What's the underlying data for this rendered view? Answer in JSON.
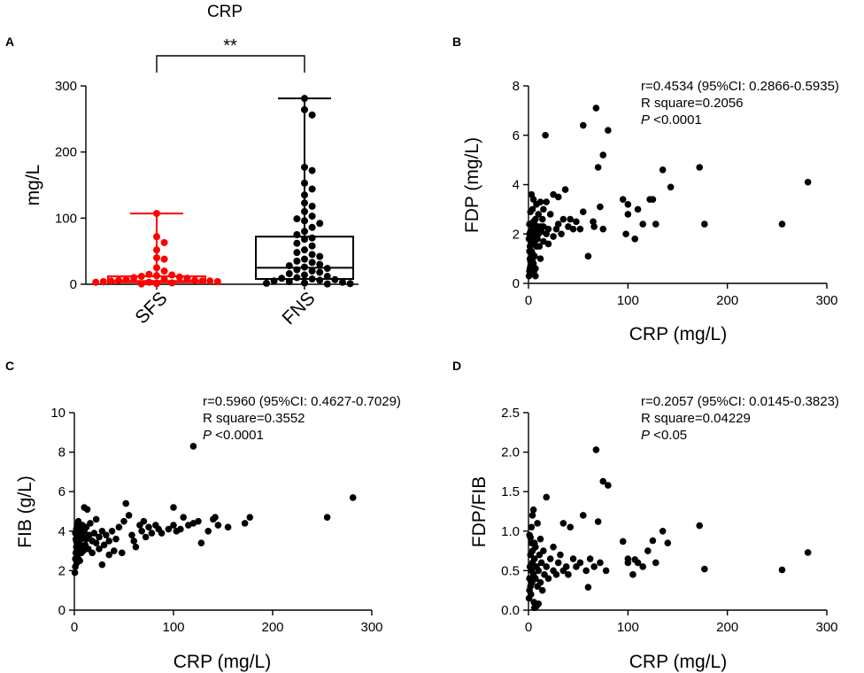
{
  "figure": {
    "width": 976,
    "height": 760
  },
  "chart_data": [
    {
      "panel": "A",
      "type": "box",
      "title": "CRP",
      "ylabel": "mg/L",
      "ylim": [
        0,
        300
      ],
      "yticks": [
        0,
        100,
        200,
        300
      ],
      "categories": [
        "SFS",
        "FNS"
      ],
      "significance": "**",
      "groups": [
        {
          "name": "SFS",
          "color": "#ff0000",
          "box": {
            "min": 0.5,
            "q1": 3,
            "median": 5,
            "q3": 12,
            "max": 107
          },
          "points": [
            107,
            72,
            63,
            52,
            40,
            38,
            25,
            20,
            15,
            14,
            13,
            12,
            11,
            10,
            9,
            8,
            7,
            6,
            6,
            5,
            5,
            5,
            4,
            4,
            3,
            3,
            2,
            2,
            1.5,
            1,
            1,
            0.5
          ]
        },
        {
          "name": "FNS",
          "color": "#000000",
          "box": {
            "min": 0.5,
            "q1": 8,
            "median": 25,
            "q3": 72,
            "max": 281
          },
          "points": [
            281,
            264,
            256,
            177,
            172,
            153,
            144,
            135,
            123,
            118,
            110,
            103,
            99,
            96,
            92,
            86,
            80,
            75,
            70,
            68,
            62,
            58,
            52,
            48,
            45,
            42,
            38,
            35,
            33,
            30,
            28,
            26,
            24,
            22,
            20,
            18,
            16,
            14,
            12,
            10,
            9,
            8,
            7,
            6,
            5,
            4,
            3,
            2,
            1.5,
            1,
            0.5
          ]
        }
      ]
    },
    {
      "panel": "B",
      "type": "scatter",
      "xlabel": "CRP (mg/L)",
      "ylabel": "FDP (mg/L)",
      "xlim": [
        0,
        300
      ],
      "ylim": [
        0,
        8
      ],
      "xticks": [
        0,
        100,
        200,
        300
      ],
      "yticks": [
        0,
        2,
        4,
        6,
        8
      ],
      "stats": [
        "r=0.4534 (95%CI: 0.2866-0.5935)",
        "R square=0.2056"
      ],
      "p_prefix": "P",
      "p_value": " <0.0001",
      "points": [
        [
          0.5,
          0.3
        ],
        [
          1,
          0.5
        ],
        [
          1.5,
          0.6
        ],
        [
          2,
          0.7
        ],
        [
          2,
          0.9
        ],
        [
          2.5,
          0.8
        ],
        [
          3,
          1.0
        ],
        [
          3,
          0.6
        ],
        [
          4,
          0.9
        ],
        [
          4,
          1.2
        ],
        [
          5,
          0.4
        ],
        [
          5,
          0.8
        ],
        [
          5.5,
          0.5
        ],
        [
          6,
          1.1
        ],
        [
          7,
          0.3
        ],
        [
          7,
          0.6
        ],
        [
          0.5,
          1.8
        ],
        [
          1,
          2.0
        ],
        [
          1,
          2.4
        ],
        [
          1.5,
          1.5
        ],
        [
          2,
          2.1
        ],
        [
          2.5,
          1.6
        ],
        [
          3,
          1.3
        ],
        [
          3.5,
          1.9
        ],
        [
          4,
          2.2
        ],
        [
          4,
          1.7
        ],
        [
          5,
          2.5
        ],
        [
          5.5,
          2.0
        ],
        [
          6,
          1.6
        ],
        [
          6,
          2.4
        ],
        [
          7,
          1.9
        ],
        [
          7,
          2.6
        ],
        [
          8,
          1.5
        ],
        [
          8,
          2.2
        ],
        [
          9,
          1.8
        ],
        [
          10,
          2.0
        ],
        [
          10,
          2.8
        ],
        [
          11,
          1.5
        ],
        [
          12,
          2.3
        ],
        [
          12,
          1.0
        ],
        [
          13,
          2.1
        ],
        [
          14,
          2.6
        ],
        [
          15,
          1.7
        ],
        [
          15,
          2.3
        ],
        [
          17,
          6.0
        ],
        [
          18,
          2.0
        ],
        [
          20,
          1.6
        ],
        [
          20,
          2.2
        ],
        [
          22,
          2.8
        ],
        [
          25,
          1.9
        ],
        [
          25,
          3.6
        ],
        [
          28,
          2.2
        ],
        [
          30,
          2.4
        ],
        [
          30,
          3.5
        ],
        [
          33,
          2.0
        ],
        [
          35,
          2.6
        ],
        [
          37,
          3.8
        ],
        [
          40,
          2.3
        ],
        [
          42,
          2.6
        ],
        [
          45,
          2.2
        ],
        [
          48,
          2.5
        ],
        [
          52,
          2.2
        ],
        [
          55,
          2.9
        ],
        [
          55,
          6.4
        ],
        [
          60,
          1.1
        ],
        [
          65,
          2.5
        ],
        [
          66,
          2.3
        ],
        [
          68,
          7.1
        ],
        [
          70,
          4.7
        ],
        [
          72,
          3.1
        ],
        [
          75,
          2.2
        ],
        [
          75,
          5.2
        ],
        [
          80,
          6.2
        ],
        [
          95,
          3.4
        ],
        [
          98,
          2.0
        ],
        [
          100,
          3.2
        ],
        [
          100,
          2.8
        ],
        [
          107,
          1.8
        ],
        [
          110,
          3.0
        ],
        [
          115,
          2.4
        ],
        [
          122,
          3.4
        ],
        [
          125,
          3.4
        ],
        [
          128,
          2.4
        ],
        [
          135,
          4.6
        ],
        [
          143,
          3.9
        ],
        [
          172,
          4.7
        ],
        [
          177,
          2.4
        ],
        [
          255,
          2.4
        ],
        [
          281,
          4.1
        ],
        [
          3,
          3.6
        ],
        [
          5,
          3.4
        ],
        [
          8,
          3.2
        ],
        [
          12,
          3.3
        ],
        [
          15,
          3.0
        ],
        [
          18,
          3.3
        ],
        [
          2,
          2.9
        ],
        [
          1,
          1.3
        ],
        [
          1.5,
          1.0
        ],
        [
          4,
          3.0
        ],
        [
          9,
          2.3
        ]
      ]
    },
    {
      "panel": "C",
      "type": "scatter",
      "xlabel": "CRP (mg/L)",
      "ylabel": "FIB (g/L)",
      "xlim": [
        0,
        300
      ],
      "ylim": [
        0,
        10
      ],
      "xticks": [
        0,
        100,
        200,
        300
      ],
      "yticks": [
        0,
        2,
        4,
        6,
        8,
        10
      ],
      "stats": [
        "r=0.5960 (95%CI: 0.4627-0.7029)",
        "R square=0.3552"
      ],
      "p_prefix": "P",
      "p_value": " <0.0001",
      "points": [
        [
          0.5,
          1.9
        ],
        [
          1,
          2.2
        ],
        [
          1,
          2.6
        ],
        [
          1.5,
          2.9
        ],
        [
          2,
          3.2
        ],
        [
          2,
          3.5
        ],
        [
          2.5,
          2.4
        ],
        [
          3,
          2.8
        ],
        [
          3,
          3.8
        ],
        [
          3.5,
          3.1
        ],
        [
          4,
          2.6
        ],
        [
          4,
          3.4
        ],
        [
          5,
          3.0
        ],
        [
          5,
          3.9
        ],
        [
          5.5,
          2.5
        ],
        [
          6,
          3.3
        ],
        [
          6,
          4.1
        ],
        [
          7,
          2.9
        ],
        [
          7,
          3.6
        ],
        [
          8,
          3.2
        ],
        [
          8,
          4.3
        ],
        [
          9,
          3.0
        ],
        [
          9,
          3.7
        ],
        [
          10,
          4.0
        ],
        [
          10,
          5.2
        ],
        [
          11,
          3.3
        ],
        [
          12,
          3.6
        ],
        [
          12,
          4.2
        ],
        [
          13,
          5.1
        ],
        [
          14,
          3.1
        ],
        [
          15,
          3.8
        ],
        [
          16,
          4.4
        ],
        [
          18,
          3.5
        ],
        [
          18,
          2.9
        ],
        [
          20,
          3.9
        ],
        [
          22,
          3.4
        ],
        [
          22,
          4.6
        ],
        [
          25,
          3.1
        ],
        [
          25,
          3.7
        ],
        [
          28,
          4.0
        ],
        [
          28,
          2.3
        ],
        [
          30,
          3.3
        ],
        [
          32,
          3.8
        ],
        [
          35,
          3.5
        ],
        [
          35,
          2.8
        ],
        [
          38,
          4.0
        ],
        [
          40,
          3.0
        ],
        [
          42,
          3.6
        ],
        [
          45,
          4.2
        ],
        [
          48,
          2.9
        ],
        [
          50,
          4.5
        ],
        [
          52,
          5.4
        ],
        [
          55,
          4.8
        ],
        [
          58,
          3.8
        ],
        [
          60,
          3.5
        ],
        [
          62,
          3.2
        ],
        [
          66,
          4.3
        ],
        [
          68,
          4.0
        ],
        [
          70,
          4.5
        ],
        [
          72,
          3.7
        ],
        [
          75,
          4.2
        ],
        [
          78,
          3.9
        ],
        [
          82,
          4.3
        ],
        [
          85,
          4.1
        ],
        [
          88,
          3.9
        ],
        [
          95,
          4.1
        ],
        [
          100,
          4.3
        ],
        [
          100,
          5.2
        ],
        [
          103,
          4.0
        ],
        [
          107,
          4.1
        ],
        [
          110,
          4.7
        ],
        [
          115,
          4.3
        ],
        [
          120,
          4.4
        ],
        [
          120,
          8.3
        ],
        [
          125,
          4.5
        ],
        [
          128,
          3.4
        ],
        [
          135,
          4.0
        ],
        [
          140,
          4.6
        ],
        [
          142,
          4.7
        ],
        [
          145,
          4.3
        ],
        [
          155,
          4.2
        ],
        [
          172,
          4.4
        ],
        [
          177,
          4.7
        ],
        [
          255,
          4.7
        ],
        [
          281,
          5.7
        ],
        [
          1,
          3.9
        ],
        [
          2,
          4.1
        ],
        [
          3,
          4.3
        ],
        [
          1.5,
          3.6
        ],
        [
          4,
          4.5
        ]
      ]
    },
    {
      "panel": "D",
      "type": "scatter",
      "xlabel": "CRP (mg/L)",
      "ylabel": "FDP/FIB",
      "xlim": [
        0,
        300
      ],
      "ylim": [
        0,
        2.5
      ],
      "xticks": [
        0,
        100,
        200,
        300
      ],
      "yticks": [
        0.0,
        0.5,
        1.0,
        1.5,
        2.0,
        2.5
      ],
      "ytick_labels": [
        "0.0",
        "0.5",
        "1.0",
        "1.5",
        "2.0",
        "2.5"
      ],
      "stats": [
        "r=0.2057 (95%CI: 0.0145-0.3823)",
        "R square=0.04229"
      ],
      "p_prefix": "P",
      "p_value": " <0.05",
      "points": [
        [
          0.5,
          0.15
        ],
        [
          1,
          0.25
        ],
        [
          1,
          0.4
        ],
        [
          1.5,
          0.55
        ],
        [
          2,
          0.3
        ],
        [
          2,
          0.7
        ],
        [
          2.5,
          0.2
        ],
        [
          3,
          0.5
        ],
        [
          3,
          0.85
        ],
        [
          3.5,
          0.35
        ],
        [
          4,
          0.6
        ],
        [
          4,
          1.2
        ],
        [
          5,
          0.45
        ],
        [
          5,
          1.27
        ],
        [
          5.5,
          0.1
        ],
        [
          6,
          0.65
        ],
        [
          6,
          0.03
        ],
        [
          7,
          0.4
        ],
        [
          7,
          0.8
        ],
        [
          8,
          0.05
        ],
        [
          8,
          0.55
        ],
        [
          9,
          0.3
        ],
        [
          9,
          1.1
        ],
        [
          10,
          0.08
        ],
        [
          10,
          0.5
        ],
        [
          11,
          0.7
        ],
        [
          12,
          0.35
        ],
        [
          12,
          0.9
        ],
        [
          13,
          0.6
        ],
        [
          14,
          0.25
        ],
        [
          15,
          0.75
        ],
        [
          16,
          0.45
        ],
        [
          18,
          0.55
        ],
        [
          18,
          1.43
        ],
        [
          20,
          0.4
        ],
        [
          22,
          0.65
        ],
        [
          25,
          0.5
        ],
        [
          25,
          0.8
        ],
        [
          28,
          0.45
        ],
        [
          30,
          0.6
        ],
        [
          32,
          0.7
        ],
        [
          35,
          0.5
        ],
        [
          35,
          1.1
        ],
        [
          38,
          0.55
        ],
        [
          40,
          0.45
        ],
        [
          42,
          1.05
        ],
        [
          45,
          0.65
        ],
        [
          48,
          0.55
        ],
        [
          52,
          0.6
        ],
        [
          55,
          1.2
        ],
        [
          58,
          0.5
        ],
        [
          60,
          0.29
        ],
        [
          62,
          0.65
        ],
        [
          66,
          0.55
        ],
        [
          68,
          2.03
        ],
        [
          70,
          1.12
        ],
        [
          72,
          0.6
        ],
        [
          75,
          1.63
        ],
        [
          78,
          0.5
        ],
        [
          80,
          1.58
        ],
        [
          95,
          0.87
        ],
        [
          100,
          0.65
        ],
        [
          100,
          0.6
        ],
        [
          105,
          0.45
        ],
        [
          107,
          0.64
        ],
        [
          110,
          0.6
        ],
        [
          115,
          0.55
        ],
        [
          120,
          0.75
        ],
        [
          125,
          0.88
        ],
        [
          128,
          0.6
        ],
        [
          135,
          1.0
        ],
        [
          140,
          0.85
        ],
        [
          172,
          1.07
        ],
        [
          177,
          0.52
        ],
        [
          255,
          0.51
        ],
        [
          281,
          0.73
        ],
        [
          1,
          0.95
        ],
        [
          2,
          0.92
        ],
        [
          3,
          1.05
        ],
        [
          4,
          0.75
        ],
        [
          6,
          0.85
        ]
      ]
    }
  ]
}
